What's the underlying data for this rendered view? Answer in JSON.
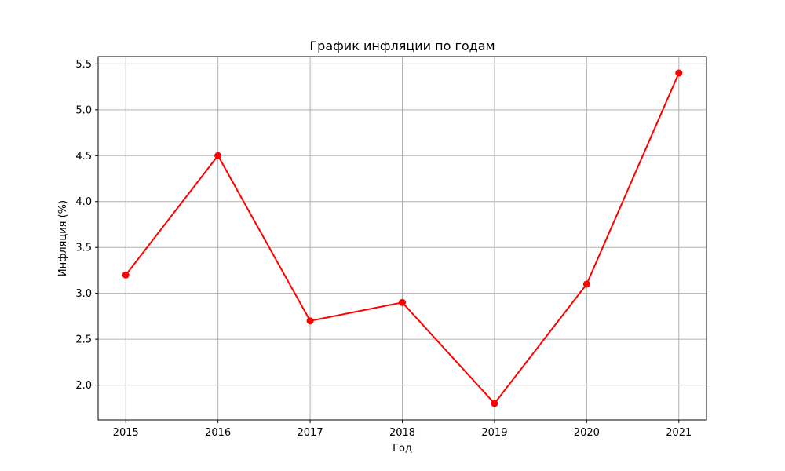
{
  "chart_data": {
    "type": "line",
    "title": "График инфляции по годам",
    "xlabel": "Год",
    "ylabel": "Инфляция (%)",
    "x": [
      2015,
      2016,
      2017,
      2018,
      2019,
      2020,
      2021
    ],
    "series": [
      {
        "values": [
          3.2,
          4.5,
          2.7,
          2.9,
          1.8,
          3.1,
          5.4
        ],
        "color": "#ff0000",
        "marker": "circle"
      }
    ],
    "xticks": [
      "2015",
      "2016",
      "2017",
      "2018",
      "2019",
      "2020",
      "2021"
    ],
    "yticks": [
      "2.0",
      "2.5",
      "3.0",
      "3.5",
      "4.0",
      "4.5",
      "5.0",
      "5.5"
    ],
    "xlim": [
      2014.7,
      2021.3
    ],
    "ylim": [
      1.62,
      5.58
    ],
    "grid": true,
    "colors": {
      "grid": "#b0b0b0",
      "axes": "#000000",
      "background": "#ffffff"
    }
  }
}
